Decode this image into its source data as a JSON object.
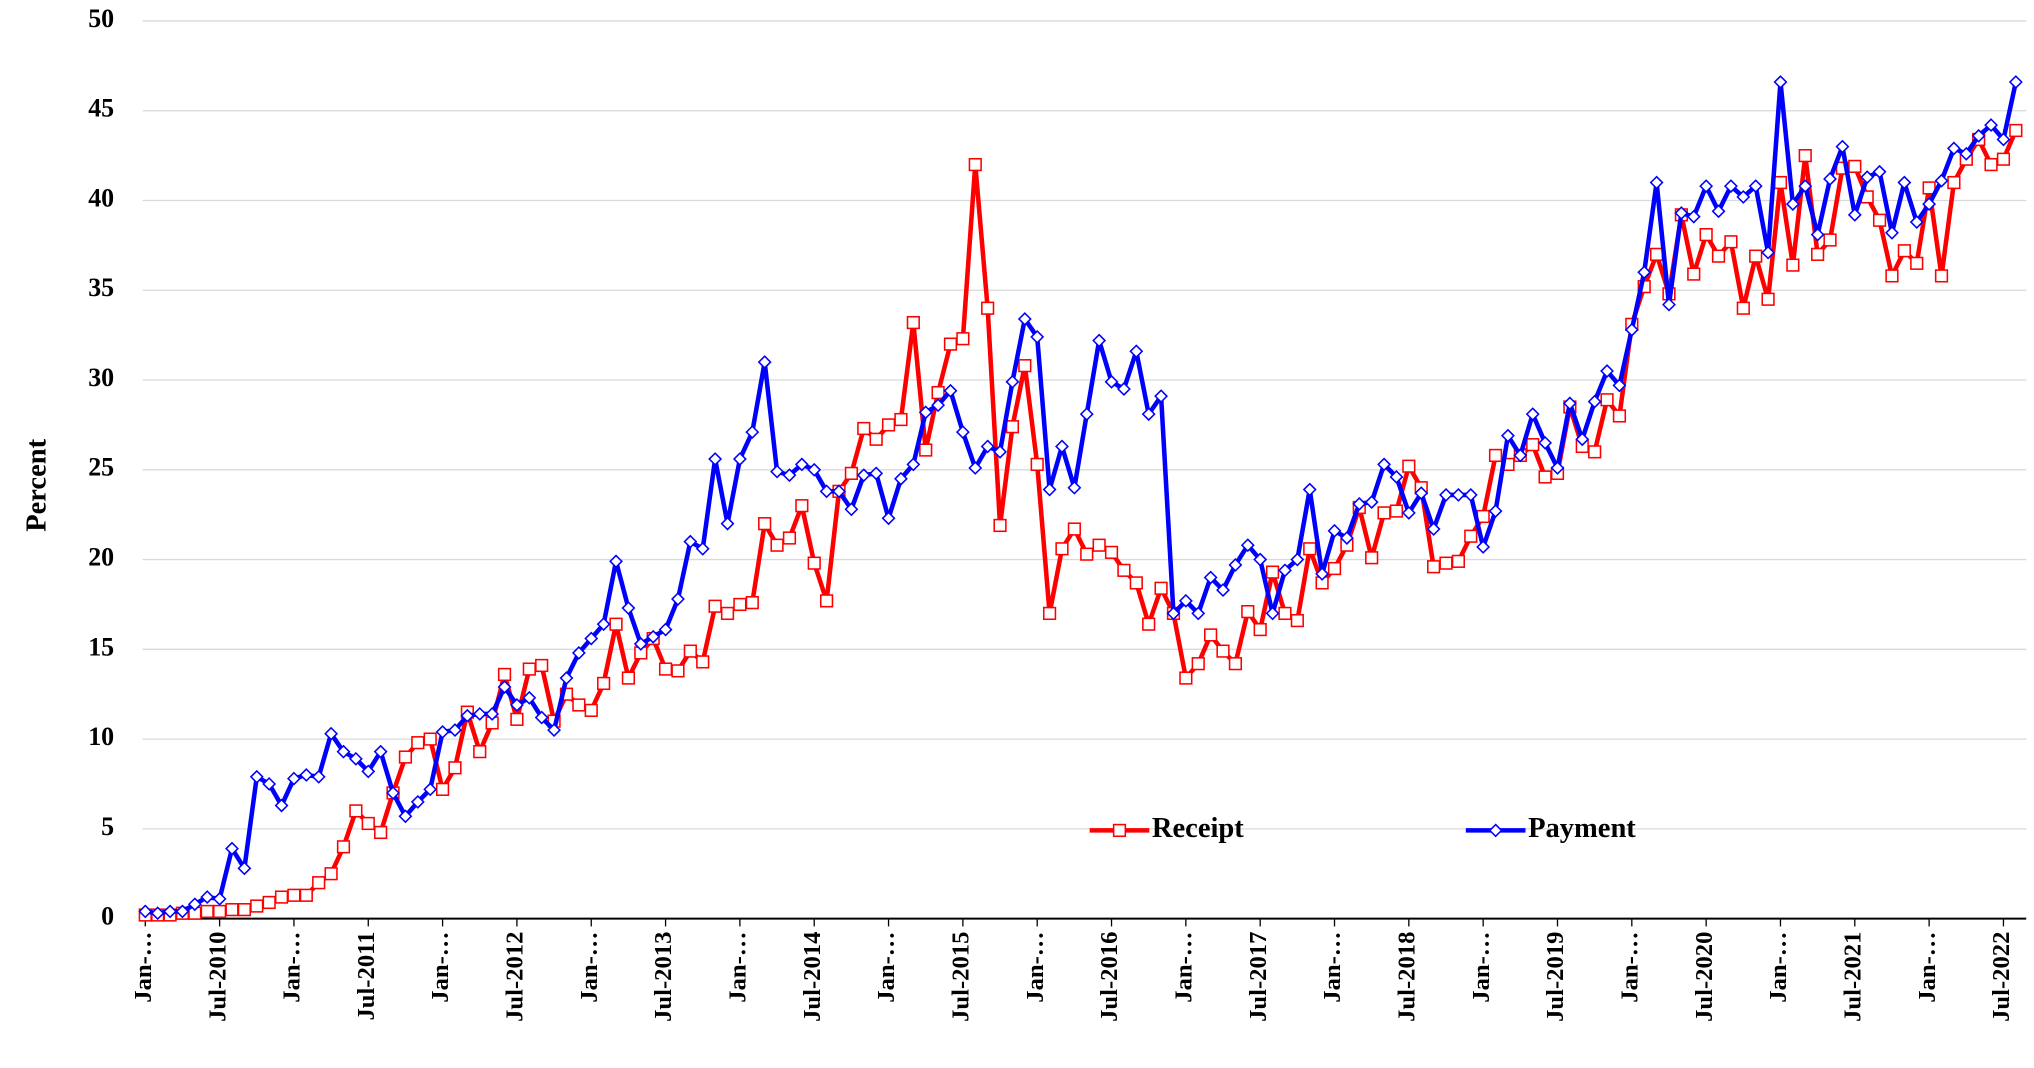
{
  "chart_data": {
    "type": "line",
    "y_label": "Percent",
    "categories": [
      "Jan-…",
      null,
      null,
      null,
      null,
      null,
      "Jul-2010",
      null,
      null,
      null,
      null,
      null,
      "Jan-…",
      null,
      null,
      null,
      null,
      null,
      "Jul-2011",
      null,
      null,
      null,
      null,
      null,
      "Jan-…",
      null,
      null,
      null,
      null,
      null,
      "Jul-2012",
      null,
      null,
      null,
      null,
      null,
      "Jan-…",
      null,
      null,
      null,
      null,
      null,
      "Jul-2013",
      null,
      null,
      null,
      null,
      null,
      "Jan-…",
      null,
      null,
      null,
      null,
      null,
      "Jul-2014",
      null,
      null,
      null,
      null,
      null,
      "Jan-…",
      null,
      null,
      null,
      null,
      null,
      "Jul-2015",
      null,
      null,
      null,
      null,
      null,
      "Jan-…",
      null,
      null,
      null,
      null,
      null,
      "Jul-2016",
      null,
      null,
      null,
      null,
      null,
      "Jan-…",
      null,
      null,
      null,
      null,
      null,
      "Jul-2017",
      null,
      null,
      null,
      null,
      null,
      "Jan-…",
      null,
      null,
      null,
      null,
      null,
      "Jul-2018",
      null,
      null,
      null,
      null,
      null,
      "Jan-…",
      null,
      null,
      null,
      null,
      null,
      "Jul-2019",
      null,
      null,
      null,
      null,
      null,
      "Jan-…",
      null,
      null,
      null,
      null,
      null,
      "Jul-2020",
      null,
      null,
      null,
      null,
      null,
      "Jan-…",
      null,
      null,
      null,
      null,
      null,
      "Jul-2021",
      null,
      null,
      null,
      null,
      null,
      "Jan-…",
      null,
      null,
      null,
      null,
      null,
      "Jul-2022",
      null
    ],
    "series": [
      {
        "name": "Receipt",
        "color": "#ff0000",
        "marker": "square",
        "values": [
          0.2,
          0.2,
          0.2,
          0.3,
          0.3,
          0.4,
          0.4,
          0.5,
          0.5,
          0.7,
          0.9,
          1.2,
          1.3,
          1.3,
          2.0,
          2.5,
          4.0,
          6.0,
          5.3,
          4.8,
          7.0,
          9.0,
          9.8,
          10.0,
          7.2,
          8.4,
          11.5,
          9.3,
          10.9,
          13.6,
          11.1,
          13.9,
          14.1,
          11.0,
          12.5,
          11.9,
          11.6,
          13.1,
          16.4,
          13.4,
          14.8,
          15.6,
          13.9,
          13.8,
          14.9,
          14.3,
          17.4,
          17.0,
          17.5,
          17.6,
          22.0,
          20.8,
          21.2,
          23.0,
          19.8,
          17.7,
          23.8,
          24.8,
          27.3,
          26.7,
          27.5,
          27.8,
          33.2,
          26.1,
          29.3,
          32.0,
          32.3,
          42.0,
          34.0,
          21.9,
          27.4,
          30.8,
          25.3,
          17.0,
          20.6,
          21.7,
          20.3,
          20.8,
          20.4,
          19.4,
          18.7,
          16.4,
          18.4,
          17.0,
          13.4,
          14.2,
          15.8,
          14.9,
          14.2,
          17.1,
          16.1,
          19.3,
          17.0,
          16.6,
          20.6,
          18.7,
          19.5,
          20.8,
          22.9,
          20.1,
          22.6,
          22.7,
          25.2,
          24.0,
          19.6,
          19.8,
          19.9,
          21.3,
          22.4,
          25.8,
          25.3,
          25.8,
          26.4,
          24.6,
          24.8,
          28.5,
          26.3,
          26.0,
          28.9,
          28.0,
          33.1,
          35.2,
          37.0,
          34.8,
          39.2,
          35.9,
          38.1,
          36.9,
          37.7,
          34.0,
          36.9,
          34.5,
          41.0,
          36.4,
          42.5,
          37.0,
          37.8,
          41.8,
          41.9,
          40.2,
          38.9,
          35.8,
          37.2,
          36.5,
          40.7,
          35.8,
          41.0,
          42.3,
          43.4,
          42.0,
          42.3,
          43.9
        ]
      },
      {
        "name": "Payment",
        "color": "#0000ff",
        "marker": "diamond",
        "values": [
          0.4,
          0.3,
          0.4,
          0.4,
          0.8,
          1.2,
          1.1,
          3.9,
          2.8,
          7.9,
          7.5,
          6.3,
          7.8,
          8.0,
          7.9,
          10.3,
          9.3,
          8.9,
          8.2,
          9.3,
          7.0,
          5.7,
          6.5,
          7.2,
          10.4,
          10.5,
          11.3,
          11.4,
          11.4,
          12.9,
          11.9,
          12.3,
          11.2,
          10.5,
          13.4,
          14.8,
          15.6,
          16.4,
          19.9,
          17.3,
          15.3,
          15.7,
          16.1,
          17.8,
          21.0,
          20.6,
          25.6,
          22.0,
          25.6,
          27.1,
          31.0,
          24.9,
          24.7,
          25.3,
          25.0,
          23.8,
          23.8,
          22.8,
          24.7,
          24.8,
          22.3,
          24.5,
          25.3,
          28.2,
          28.6,
          29.4,
          27.1,
          25.1,
          26.3,
          26.0,
          29.9,
          33.4,
          32.4,
          23.9,
          26.3,
          24.0,
          28.1,
          32.2,
          29.9,
          29.5,
          31.6,
          28.1,
          29.1,
          17.0,
          17.7,
          17.0,
          19.0,
          18.3,
          19.7,
          20.8,
          20.0,
          17.0,
          19.4,
          20.0,
          23.9,
          19.2,
          21.6,
          21.2,
          23.1,
          23.2,
          25.3,
          24.6,
          22.6,
          23.7,
          21.7,
          23.6,
          23.6,
          23.6,
          20.7,
          22.7,
          26.9,
          25.8,
          28.1,
          26.5,
          25.1,
          28.7,
          26.7,
          28.8,
          30.5,
          29.7,
          32.8,
          36.0,
          41.0,
          34.2,
          39.3,
          39.1,
          40.8,
          39.4,
          40.8,
          40.2,
          40.8,
          37.1,
          46.6,
          39.8,
          40.8,
          38.1,
          41.2,
          43.0,
          39.2,
          41.3,
          41.6,
          38.2,
          41.0,
          38.8,
          39.8,
          41.1,
          42.9,
          42.6,
          43.6,
          44.2,
          43.4,
          46.6
        ]
      }
    ],
    "ylim": [
      0,
      50
    ],
    "yticks": [
      0,
      5,
      10,
      15,
      20,
      25,
      30,
      35,
      40,
      45,
      50
    ],
    "grid": true,
    "legend": "bottom-right"
  }
}
